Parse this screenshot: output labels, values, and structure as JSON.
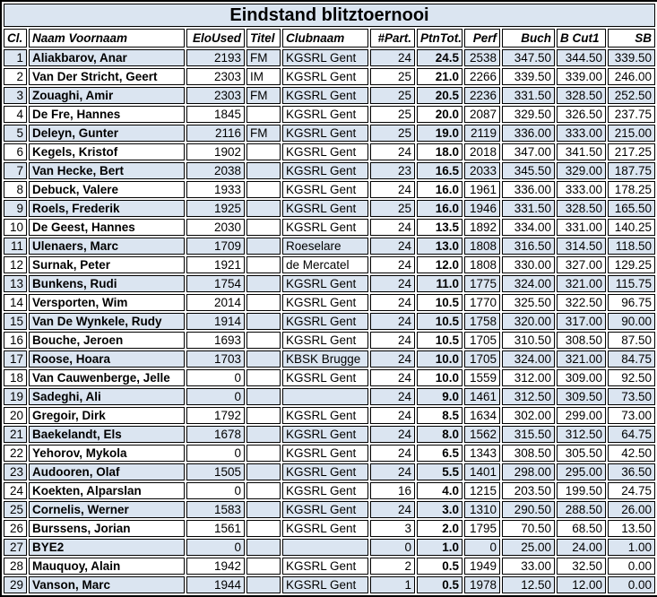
{
  "title": "Eindstand blitztoernooi",
  "colors": {
    "stripe_row_bg": "#dbe5f1",
    "plain_row_bg": "#ffffff",
    "title_bar_bg": "#dbe5f1",
    "border": "#000000",
    "text": "#000000"
  },
  "table": {
    "columns": [
      {
        "key": "cl",
        "label": "Cl.",
        "align": "right",
        "header_align": "left"
      },
      {
        "key": "name",
        "label": "Naam Voornaam",
        "align": "left",
        "header_align": "left"
      },
      {
        "key": "elo",
        "label": "EloUsed",
        "align": "right",
        "header_align": "right"
      },
      {
        "key": "titel",
        "label": "Titel",
        "align": "left",
        "header_align": "left"
      },
      {
        "key": "club",
        "label": "Clubnaam",
        "align": "left",
        "header_align": "left"
      },
      {
        "key": "part",
        "label": "#Part.",
        "align": "right",
        "header_align": "right"
      },
      {
        "key": "ptn",
        "label": "PtnTot.",
        "align": "right",
        "header_align": "right"
      },
      {
        "key": "perf",
        "label": "Perf",
        "align": "right",
        "header_align": "right"
      },
      {
        "key": "buch",
        "label": "Buch",
        "align": "right",
        "header_align": "right"
      },
      {
        "key": "bcut1",
        "label": "B Cut1",
        "align": "right",
        "header_align": "left"
      },
      {
        "key": "sb",
        "label": "SB",
        "align": "right",
        "header_align": "right"
      }
    ],
    "rows": [
      {
        "cl": "1",
        "name": "Aliakbarov, Anar",
        "elo": "2193",
        "titel": "FM",
        "club": "KGSRL Gent",
        "part": "24",
        "ptn": "24.5",
        "perf": "2538",
        "buch": "347.50",
        "bcut1": "344.50",
        "sb": "339.50"
      },
      {
        "cl": "2",
        "name": "Van Der Stricht, Geert",
        "elo": "2303",
        "titel": "IM",
        "club": "KGSRL Gent",
        "part": "25",
        "ptn": "21.0",
        "perf": "2266",
        "buch": "339.50",
        "bcut1": "339.00",
        "sb": "246.00"
      },
      {
        "cl": "3",
        "name": "Zouaghi, Amir",
        "elo": "2303",
        "titel": "FM",
        "club": "KGSRL Gent",
        "part": "25",
        "ptn": "20.5",
        "perf": "2236",
        "buch": "331.50",
        "bcut1": "328.50",
        "sb": "252.50"
      },
      {
        "cl": "4",
        "name": "De Fre, Hannes",
        "elo": "1845",
        "titel": "",
        "club": "KGSRL Gent",
        "part": "25",
        "ptn": "20.0",
        "perf": "2087",
        "buch": "329.50",
        "bcut1": "326.50",
        "sb": "237.75"
      },
      {
        "cl": "5",
        "name": "Deleyn, Gunter",
        "elo": "2116",
        "titel": "FM",
        "club": "KGSRL Gent",
        "part": "25",
        "ptn": "19.0",
        "perf": "2119",
        "buch": "336.00",
        "bcut1": "333.00",
        "sb": "215.00"
      },
      {
        "cl": "6",
        "name": "Kegels, Kristof",
        "elo": "1902",
        "titel": "",
        "club": "KGSRL Gent",
        "part": "24",
        "ptn": "18.0",
        "perf": "2018",
        "buch": "347.00",
        "bcut1": "341.50",
        "sb": "217.25"
      },
      {
        "cl": "7",
        "name": "Van Hecke, Bert",
        "elo": "2038",
        "titel": "",
        "club": "KGSRL Gent",
        "part": "23",
        "ptn": "16.5",
        "perf": "2033",
        "buch": "345.50",
        "bcut1": "329.00",
        "sb": "187.75"
      },
      {
        "cl": "8",
        "name": "Debuck, Valere",
        "elo": "1933",
        "titel": "",
        "club": "KGSRL Gent",
        "part": "24",
        "ptn": "16.0",
        "perf": "1961",
        "buch": "336.00",
        "bcut1": "333.00",
        "sb": "178.25"
      },
      {
        "cl": "9",
        "name": "Roels, Frederik",
        "elo": "1925",
        "titel": "",
        "club": "KGSRL Gent",
        "part": "25",
        "ptn": "16.0",
        "perf": "1946",
        "buch": "331.50",
        "bcut1": "328.50",
        "sb": "165.50"
      },
      {
        "cl": "10",
        "name": "De Geest, Hannes",
        "elo": "2030",
        "titel": "",
        "club": "KGSRL Gent",
        "part": "24",
        "ptn": "13.5",
        "perf": "1892",
        "buch": "334.00",
        "bcut1": "331.00",
        "sb": "140.25"
      },
      {
        "cl": "11",
        "name": "Ulenaers, Marc",
        "elo": "1709",
        "titel": "",
        "club": "Roeselare",
        "part": "24",
        "ptn": "13.0",
        "perf": "1808",
        "buch": "316.50",
        "bcut1": "314.50",
        "sb": "118.50"
      },
      {
        "cl": "12",
        "name": "Surnak, Peter",
        "elo": "1921",
        "titel": "",
        "club": "de Mercatel",
        "part": "24",
        "ptn": "12.0",
        "perf": "1808",
        "buch": "330.00",
        "bcut1": "327.00",
        "sb": "129.25"
      },
      {
        "cl": "13",
        "name": "Bunkens, Rudi",
        "elo": "1754",
        "titel": "",
        "club": "KGSRL Gent",
        "part": "24",
        "ptn": "11.0",
        "perf": "1775",
        "buch": "324.00",
        "bcut1": "321.00",
        "sb": "115.75"
      },
      {
        "cl": "14",
        "name": "Versporten, Wim",
        "elo": "2014",
        "titel": "",
        "club": "KGSRL Gent",
        "part": "24",
        "ptn": "10.5",
        "perf": "1770",
        "buch": "325.50",
        "bcut1": "322.50",
        "sb": "96.75"
      },
      {
        "cl": "15",
        "name": "Van De Wynkele, Rudy",
        "elo": "1914",
        "titel": "",
        "club": "KGSRL Gent",
        "part": "24",
        "ptn": "10.5",
        "perf": "1758",
        "buch": "320.00",
        "bcut1": "317.00",
        "sb": "90.00"
      },
      {
        "cl": "16",
        "name": "Bouche, Jeroen",
        "elo": "1693",
        "titel": "",
        "club": "KGSRL Gent",
        "part": "24",
        "ptn": "10.5",
        "perf": "1705",
        "buch": "310.50",
        "bcut1": "308.50",
        "sb": "87.50"
      },
      {
        "cl": "17",
        "name": "Roose, Hoara",
        "elo": "1703",
        "titel": "",
        "club": "KBSK Brugge",
        "part": "24",
        "ptn": "10.0",
        "perf": "1705",
        "buch": "324.00",
        "bcut1": "321.00",
        "sb": "84.75"
      },
      {
        "cl": "18",
        "name": "Van Cauwenberge, Jelle",
        "elo": "0",
        "titel": "",
        "club": "KGSRL Gent",
        "part": "24",
        "ptn": "10.0",
        "perf": "1559",
        "buch": "312.00",
        "bcut1": "309.00",
        "sb": "92.50"
      },
      {
        "cl": "19",
        "name": "Sadeghi, Ali",
        "elo": "0",
        "titel": "",
        "club": "",
        "part": "24",
        "ptn": "9.0",
        "perf": "1461",
        "buch": "312.50",
        "bcut1": "309.50",
        "sb": "73.50"
      },
      {
        "cl": "20",
        "name": "Gregoir, Dirk",
        "elo": "1792",
        "titel": "",
        "club": "KGSRL Gent",
        "part": "24",
        "ptn": "8.5",
        "perf": "1634",
        "buch": "302.00",
        "bcut1": "299.00",
        "sb": "73.00"
      },
      {
        "cl": "21",
        "name": "Baekelandt, Els",
        "elo": "1678",
        "titel": "",
        "club": "KGSRL Gent",
        "part": "24",
        "ptn": "8.0",
        "perf": "1562",
        "buch": "315.50",
        "bcut1": "312.50",
        "sb": "64.75"
      },
      {
        "cl": "22",
        "name": "Yehorov, Mykola",
        "elo": "0",
        "titel": "",
        "club": "KGSRL Gent",
        "part": "24",
        "ptn": "6.5",
        "perf": "1343",
        "buch": "308.50",
        "bcut1": "305.50",
        "sb": "42.50"
      },
      {
        "cl": "23",
        "name": "Audooren, Olaf",
        "elo": "1505",
        "titel": "",
        "club": "KGSRL Gent",
        "part": "24",
        "ptn": "5.5",
        "perf": "1401",
        "buch": "298.00",
        "bcut1": "295.00",
        "sb": "36.50"
      },
      {
        "cl": "24",
        "name": "Koekten, Alparslan",
        "elo": "0",
        "titel": "",
        "club": "KGSRL Gent",
        "part": "16",
        "ptn": "4.0",
        "perf": "1215",
        "buch": "203.50",
        "bcut1": "199.50",
        "sb": "24.75"
      },
      {
        "cl": "25",
        "name": "Cornelis, Werner",
        "elo": "1583",
        "titel": "",
        "club": "KGSRL Gent",
        "part": "24",
        "ptn": "3.0",
        "perf": "1310",
        "buch": "290.50",
        "bcut1": "288.50",
        "sb": "26.00"
      },
      {
        "cl": "26",
        "name": "Burssens, Jorian",
        "elo": "1561",
        "titel": "",
        "club": "KGSRL Gent",
        "part": "3",
        "ptn": "2.0",
        "perf": "1795",
        "buch": "70.50",
        "bcut1": "68.50",
        "sb": "13.50"
      },
      {
        "cl": "27",
        "name": "BYE2",
        "elo": "0",
        "titel": "",
        "club": "",
        "part": "0",
        "ptn": "1.0",
        "perf": "0",
        "buch": "25.00",
        "bcut1": "24.00",
        "sb": "1.00"
      },
      {
        "cl": "28",
        "name": "Mauquoy, Alain",
        "elo": "1942",
        "titel": "",
        "club": "KGSRL Gent",
        "part": "2",
        "ptn": "0.5",
        "perf": "1949",
        "buch": "33.00",
        "bcut1": "32.50",
        "sb": "0.00"
      },
      {
        "cl": "29",
        "name": "Vanson, Marc",
        "elo": "1944",
        "titel": "",
        "club": "KGSRL Gent",
        "part": "1",
        "ptn": "0.5",
        "perf": "1978",
        "buch": "12.50",
        "bcut1": "12.00",
        "sb": "0.00"
      }
    ]
  }
}
